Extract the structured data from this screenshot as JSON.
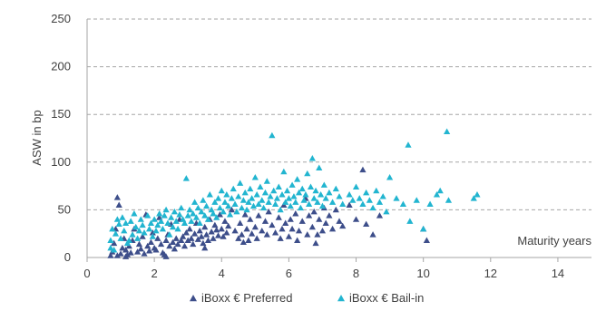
{
  "chart_data": {
    "type": "scatter",
    "title": "",
    "ylabel": "ASW in bp",
    "xlabel": "Maturity years",
    "xlim": [
      0,
      15
    ],
    "ylim": [
      0,
      250
    ],
    "x_ticks": [
      "0",
      "2",
      "4",
      "6",
      "8",
      "10",
      "12",
      "14"
    ],
    "y_ticks": [
      "0",
      "50",
      "100",
      "150",
      "200",
      "250"
    ],
    "grid": "horizontal dashed",
    "legend_position": "bottom",
    "marker": "triangle",
    "series": [
      {
        "name": "iBoxx € Preferred",
        "color": "#3d4e8a",
        "points": [
          [
            0.7,
            2
          ],
          [
            0.75,
            6
          ],
          [
            0.8,
            15
          ],
          [
            0.85,
            30
          ],
          [
            0.9,
            63
          ],
          [
            0.95,
            55
          ],
          [
            1.0,
            4
          ],
          [
            1.05,
            10
          ],
          [
            1.1,
            20
          ],
          [
            1.15,
            8
          ],
          [
            1.2,
            3
          ],
          [
            1.25,
            12
          ],
          [
            1.3,
            5
          ],
          [
            1.35,
            18
          ],
          [
            1.4,
            30
          ],
          [
            1.5,
            6
          ],
          [
            1.55,
            14
          ],
          [
            1.6,
            9
          ],
          [
            1.65,
            22
          ],
          [
            1.7,
            4
          ],
          [
            1.75,
            45
          ],
          [
            1.8,
            12
          ],
          [
            1.85,
            7
          ],
          [
            1.9,
            16
          ],
          [
            1.95,
            26
          ],
          [
            2.0,
            10
          ],
          [
            2.05,
            8
          ],
          [
            2.1,
            20
          ],
          [
            2.15,
            42
          ],
          [
            2.2,
            14
          ],
          [
            2.25,
            5
          ],
          [
            2.3,
            3
          ],
          [
            2.35,
            18
          ],
          [
            2.4,
            24
          ],
          [
            2.45,
            12
          ],
          [
            2.5,
            35
          ],
          [
            2.55,
            16
          ],
          [
            2.6,
            9
          ],
          [
            2.65,
            20
          ],
          [
            2.7,
            14
          ],
          [
            2.75,
            40
          ],
          [
            2.8,
            18
          ],
          [
            2.85,
            22
          ],
          [
            2.9,
            12
          ],
          [
            2.95,
            26
          ],
          [
            3.0,
            18
          ],
          [
            3.05,
            30
          ],
          [
            3.1,
            20
          ],
          [
            3.15,
            14
          ],
          [
            3.2,
            25
          ],
          [
            3.25,
            36
          ],
          [
            3.3,
            19
          ],
          [
            3.35,
            28
          ],
          [
            3.4,
            22
          ],
          [
            3.45,
            15
          ],
          [
            3.5,
            32
          ],
          [
            3.55,
            24
          ],
          [
            3.6,
            18
          ],
          [
            3.65,
            40
          ],
          [
            3.7,
            27
          ],
          [
            3.75,
            20
          ],
          [
            3.8,
            34
          ],
          [
            3.85,
            29
          ],
          [
            3.9,
            23
          ],
          [
            3.95,
            45
          ],
          [
            4.0,
            30
          ],
          [
            4.05,
            22
          ],
          [
            4.1,
            38
          ],
          [
            4.15,
            26
          ],
          [
            4.2,
            33
          ],
          [
            4.3,
            50
          ],
          [
            4.4,
            28
          ],
          [
            4.5,
            20
          ],
          [
            4.55,
            36
          ],
          [
            4.6,
            24
          ],
          [
            4.7,
            45
          ],
          [
            4.75,
            30
          ],
          [
            4.8,
            18
          ],
          [
            4.85,
            40
          ],
          [
            4.9,
            25
          ],
          [
            5.0,
            32
          ],
          [
            5.05,
            20
          ],
          [
            5.1,
            44
          ],
          [
            5.2,
            28
          ],
          [
            5.3,
            38
          ],
          [
            5.35,
            24
          ],
          [
            5.4,
            48
          ],
          [
            5.5,
            34
          ],
          [
            5.6,
            26
          ],
          [
            5.7,
            42
          ],
          [
            5.8,
            30
          ],
          [
            5.85,
            55
          ],
          [
            5.9,
            36
          ],
          [
            6.0,
            22
          ],
          [
            6.05,
            40
          ],
          [
            6.1,
            30
          ],
          [
            6.2,
            46
          ],
          [
            6.3,
            28
          ],
          [
            6.4,
            38
          ],
          [
            6.5,
            62
          ],
          [
            6.55,
            24
          ],
          [
            6.6,
            44
          ],
          [
            6.7,
            32
          ],
          [
            6.75,
            48
          ],
          [
            6.8,
            15
          ],
          [
            6.9,
            40
          ],
          [
            7.0,
            28
          ],
          [
            7.05,
            52
          ],
          [
            7.1,
            36
          ],
          [
            7.2,
            44
          ],
          [
            7.3,
            30
          ],
          [
            7.4,
            50
          ],
          [
            7.5,
            38
          ],
          [
            7.6,
            33
          ],
          [
            7.8,
            55
          ],
          [
            8.0,
            40
          ],
          [
            8.2,
            92
          ],
          [
            8.3,
            35
          ],
          [
            8.5,
            24
          ],
          [
            8.7,
            44
          ],
          [
            10.0,
            30
          ],
          [
            10.1,
            18
          ],
          [
            2.35,
            1
          ],
          [
            1.15,
            1
          ],
          [
            0.9,
            2
          ],
          [
            3.5,
            10
          ],
          [
            4.65,
            16
          ],
          [
            5.75,
            20
          ],
          [
            6.25,
            18
          ],
          [
            6.85,
            24
          ]
        ]
      },
      {
        "name": "iBoxx € Bail-in",
        "color": "#22b5d0",
        "points": [
          [
            0.7,
            18
          ],
          [
            0.75,
            30
          ],
          [
            0.8,
            8
          ],
          [
            0.85,
            25
          ],
          [
            0.9,
            40
          ],
          [
            0.95,
            35
          ],
          [
            1.0,
            20
          ],
          [
            1.05,
            42
          ],
          [
            1.1,
            28
          ],
          [
            1.15,
            36
          ],
          [
            1.2,
            15
          ],
          [
            1.3,
            38
          ],
          [
            1.35,
            24
          ],
          [
            1.4,
            46
          ],
          [
            1.45,
            32
          ],
          [
            1.5,
            20
          ],
          [
            1.55,
            28
          ],
          [
            1.6,
            40
          ],
          [
            1.65,
            34
          ],
          [
            1.7,
            26
          ],
          [
            1.8,
            44
          ],
          [
            1.85,
            30
          ],
          [
            1.9,
            36
          ],
          [
            1.95,
            22
          ],
          [
            2.0,
            40
          ],
          [
            2.05,
            28
          ],
          [
            2.1,
            34
          ],
          [
            2.15,
            46
          ],
          [
            2.2,
            38
          ],
          [
            2.25,
            30
          ],
          [
            2.3,
            44
          ],
          [
            2.35,
            50
          ],
          [
            2.4,
            36
          ],
          [
            2.5,
            42
          ],
          [
            2.55,
            32
          ],
          [
            2.6,
            48
          ],
          [
            2.65,
            38
          ],
          [
            2.7,
            30
          ],
          [
            2.75,
            45
          ],
          [
            2.8,
            52
          ],
          [
            2.85,
            40
          ],
          [
            2.9,
            36
          ],
          [
            2.95,
            83
          ],
          [
            3.0,
            44
          ],
          [
            3.05,
            50
          ],
          [
            3.1,
            38
          ],
          [
            3.15,
            46
          ],
          [
            3.2,
            58
          ],
          [
            3.25,
            42
          ],
          [
            3.3,
            52
          ],
          [
            3.35,
            36
          ],
          [
            3.4,
            48
          ],
          [
            3.45,
            60
          ],
          [
            3.5,
            44
          ],
          [
            3.55,
            54
          ],
          [
            3.6,
            40
          ],
          [
            3.65,
            66
          ],
          [
            3.7,
            50
          ],
          [
            3.75,
            46
          ],
          [
            3.8,
            58
          ],
          [
            3.85,
            42
          ],
          [
            3.9,
            62
          ],
          [
            3.95,
            52
          ],
          [
            4.0,
            70
          ],
          [
            4.05,
            48
          ],
          [
            4.1,
            58
          ],
          [
            4.15,
            66
          ],
          [
            4.2,
            54
          ],
          [
            4.25,
            45
          ],
          [
            4.3,
            62
          ],
          [
            4.35,
            72
          ],
          [
            4.4,
            56
          ],
          [
            4.45,
            48
          ],
          [
            4.5,
            64
          ],
          [
            4.55,
            78
          ],
          [
            4.6,
            52
          ],
          [
            4.65,
            60
          ],
          [
            4.7,
            68
          ],
          [
            4.75,
            50
          ],
          [
            4.8,
            58
          ],
          [
            4.85,
            72
          ],
          [
            4.9,
            62
          ],
          [
            4.95,
            54
          ],
          [
            5.0,
            84
          ],
          [
            5.05,
            66
          ],
          [
            5.1,
            56
          ],
          [
            5.15,
            74
          ],
          [
            5.2,
            60
          ],
          [
            5.25,
            52
          ],
          [
            5.3,
            68
          ],
          [
            5.35,
            80
          ],
          [
            5.4,
            58
          ],
          [
            5.45,
            64
          ],
          [
            5.5,
            128
          ],
          [
            5.55,
            70
          ],
          [
            5.6,
            56
          ],
          [
            5.65,
            62
          ],
          [
            5.7,
            74
          ],
          [
            5.75,
            50
          ],
          [
            5.8,
            66
          ],
          [
            5.85,
            90
          ],
          [
            5.9,
            58
          ],
          [
            5.95,
            70
          ],
          [
            6.0,
            62
          ],
          [
            6.05,
            54
          ],
          [
            6.1,
            76
          ],
          [
            6.15,
            64
          ],
          [
            6.2,
            58
          ],
          [
            6.25,
            82
          ],
          [
            6.3,
            68
          ],
          [
            6.35,
            52
          ],
          [
            6.4,
            72
          ],
          [
            6.45,
            60
          ],
          [
            6.5,
            66
          ],
          [
            6.55,
            88
          ],
          [
            6.6,
            56
          ],
          [
            6.65,
            74
          ],
          [
            6.7,
            104
          ],
          [
            6.75,
            62
          ],
          [
            6.8,
            70
          ],
          [
            6.85,
            58
          ],
          [
            6.9,
            94
          ],
          [
            6.95,
            66
          ],
          [
            7.0,
            54
          ],
          [
            7.05,
            76
          ],
          [
            7.1,
            62
          ],
          [
            7.2,
            68
          ],
          [
            7.3,
            58
          ],
          [
            7.4,
            72
          ],
          [
            7.5,
            64
          ],
          [
            7.6,
            56
          ],
          [
            7.8,
            66
          ],
          [
            7.9,
            60
          ],
          [
            8.0,
            74
          ],
          [
            8.1,
            62
          ],
          [
            8.2,
            56
          ],
          [
            8.3,
            68
          ],
          [
            8.4,
            60
          ],
          [
            8.5,
            52
          ],
          [
            8.6,
            70
          ],
          [
            8.7,
            58
          ],
          [
            8.8,
            64
          ],
          [
            8.9,
            48
          ],
          [
            9.0,
            84
          ],
          [
            9.2,
            62
          ],
          [
            9.4,
            56
          ],
          [
            9.55,
            118
          ],
          [
            9.6,
            38
          ],
          [
            9.8,
            60
          ],
          [
            10.0,
            30
          ],
          [
            10.2,
            56
          ],
          [
            10.4,
            66
          ],
          [
            10.5,
            70
          ],
          [
            10.7,
            132
          ],
          [
            10.75,
            60
          ],
          [
            11.5,
            62
          ],
          [
            11.6,
            66
          ],
          [
            0.7,
            10
          ],
          [
            1.25,
            18
          ],
          [
            2.45,
            24
          ]
        ]
      }
    ]
  }
}
